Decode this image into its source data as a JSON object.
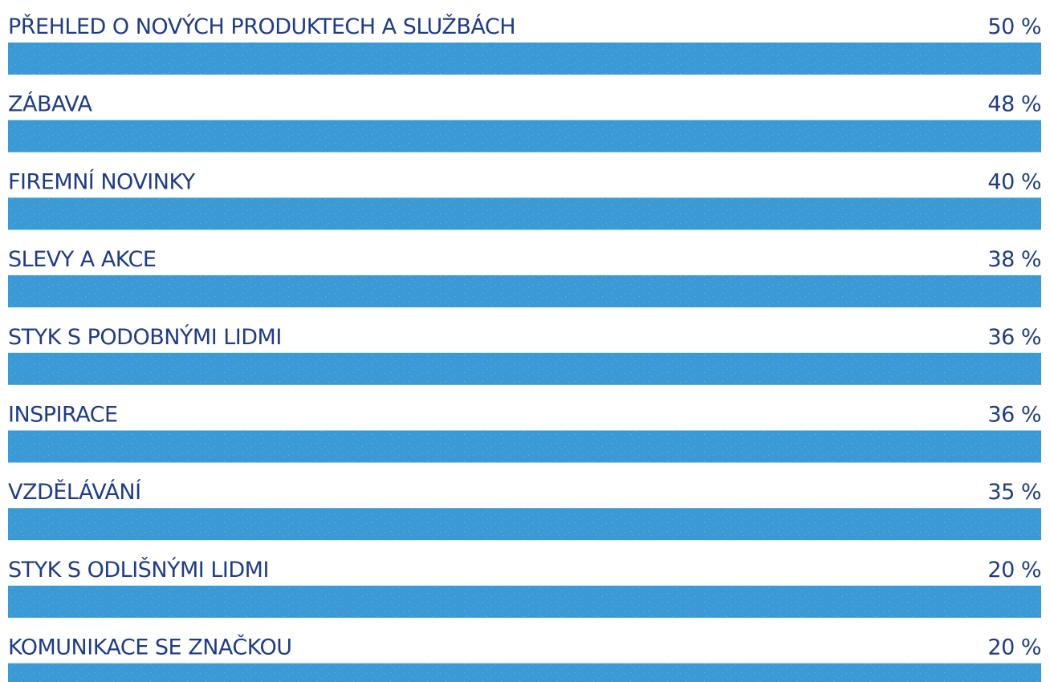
{
  "chart_data": {
    "type": "bar",
    "orientation": "horizontal",
    "categories": [
      "PŘEHLED O NOVÝCH PRODUKTECH A SLUŽBÁCH",
      "ZÁBAVA",
      "FIREMNÍ NOVINKY",
      "SLEVY A AKCE",
      "STYK S PODOBNÝMI LIDMI",
      "INSPIRACE",
      "VZDĚLÁVÁNÍ",
      "STYK S ODLIŠNÝMI LIDMI",
      "KOMUNIKACE SE ZNAČKOU"
    ],
    "values": [
      50,
      48,
      40,
      38,
      36,
      36,
      35,
      20,
      20
    ],
    "value_labels": [
      "50 %",
      "48 %",
      "40 %",
      "38 %",
      "36 %",
      "36 %",
      "35 %",
      "20 %",
      "20 %"
    ],
    "xlim": [
      0,
      100
    ],
    "grid": false,
    "colors": {
      "filled": "#203f8c",
      "track": "#3b9ad6",
      "text": "#1f3c84"
    }
  }
}
